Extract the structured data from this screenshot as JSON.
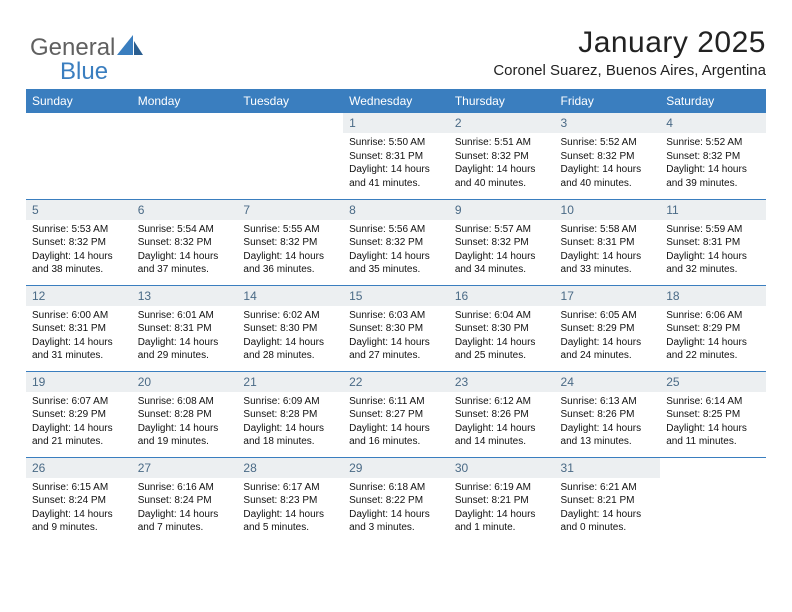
{
  "logo": {
    "text1": "General",
    "text2": "Blue"
  },
  "title": "January 2025",
  "location": "Coronel Suarez, Buenos Aires, Argentina",
  "colors": {
    "header_bg": "#3a7ebf",
    "header_fg": "#ffffff",
    "daynum_bg": "#eceff1",
    "daynum_fg": "#4a6a86",
    "rule": "#3a7ebf",
    "logo_gray": "#606060",
    "logo_blue": "#3a7ebf"
  },
  "weekdays": [
    "Sunday",
    "Monday",
    "Tuesday",
    "Wednesday",
    "Thursday",
    "Friday",
    "Saturday"
  ],
  "weeks": [
    [
      {
        "n": "",
        "sr": "",
        "ss": "",
        "dl": ""
      },
      {
        "n": "",
        "sr": "",
        "ss": "",
        "dl": ""
      },
      {
        "n": "",
        "sr": "",
        "ss": "",
        "dl": ""
      },
      {
        "n": "1",
        "sr": "Sunrise: 5:50 AM",
        "ss": "Sunset: 8:31 PM",
        "dl": "Daylight: 14 hours and 41 minutes."
      },
      {
        "n": "2",
        "sr": "Sunrise: 5:51 AM",
        "ss": "Sunset: 8:32 PM",
        "dl": "Daylight: 14 hours and 40 minutes."
      },
      {
        "n": "3",
        "sr": "Sunrise: 5:52 AM",
        "ss": "Sunset: 8:32 PM",
        "dl": "Daylight: 14 hours and 40 minutes."
      },
      {
        "n": "4",
        "sr": "Sunrise: 5:52 AM",
        "ss": "Sunset: 8:32 PM",
        "dl": "Daylight: 14 hours and 39 minutes."
      }
    ],
    [
      {
        "n": "5",
        "sr": "Sunrise: 5:53 AM",
        "ss": "Sunset: 8:32 PM",
        "dl": "Daylight: 14 hours and 38 minutes."
      },
      {
        "n": "6",
        "sr": "Sunrise: 5:54 AM",
        "ss": "Sunset: 8:32 PM",
        "dl": "Daylight: 14 hours and 37 minutes."
      },
      {
        "n": "7",
        "sr": "Sunrise: 5:55 AM",
        "ss": "Sunset: 8:32 PM",
        "dl": "Daylight: 14 hours and 36 minutes."
      },
      {
        "n": "8",
        "sr": "Sunrise: 5:56 AM",
        "ss": "Sunset: 8:32 PM",
        "dl": "Daylight: 14 hours and 35 minutes."
      },
      {
        "n": "9",
        "sr": "Sunrise: 5:57 AM",
        "ss": "Sunset: 8:32 PM",
        "dl": "Daylight: 14 hours and 34 minutes."
      },
      {
        "n": "10",
        "sr": "Sunrise: 5:58 AM",
        "ss": "Sunset: 8:31 PM",
        "dl": "Daylight: 14 hours and 33 minutes."
      },
      {
        "n": "11",
        "sr": "Sunrise: 5:59 AM",
        "ss": "Sunset: 8:31 PM",
        "dl": "Daylight: 14 hours and 32 minutes."
      }
    ],
    [
      {
        "n": "12",
        "sr": "Sunrise: 6:00 AM",
        "ss": "Sunset: 8:31 PM",
        "dl": "Daylight: 14 hours and 31 minutes."
      },
      {
        "n": "13",
        "sr": "Sunrise: 6:01 AM",
        "ss": "Sunset: 8:31 PM",
        "dl": "Daylight: 14 hours and 29 minutes."
      },
      {
        "n": "14",
        "sr": "Sunrise: 6:02 AM",
        "ss": "Sunset: 8:30 PM",
        "dl": "Daylight: 14 hours and 28 minutes."
      },
      {
        "n": "15",
        "sr": "Sunrise: 6:03 AM",
        "ss": "Sunset: 8:30 PM",
        "dl": "Daylight: 14 hours and 27 minutes."
      },
      {
        "n": "16",
        "sr": "Sunrise: 6:04 AM",
        "ss": "Sunset: 8:30 PM",
        "dl": "Daylight: 14 hours and 25 minutes."
      },
      {
        "n": "17",
        "sr": "Sunrise: 6:05 AM",
        "ss": "Sunset: 8:29 PM",
        "dl": "Daylight: 14 hours and 24 minutes."
      },
      {
        "n": "18",
        "sr": "Sunrise: 6:06 AM",
        "ss": "Sunset: 8:29 PM",
        "dl": "Daylight: 14 hours and 22 minutes."
      }
    ],
    [
      {
        "n": "19",
        "sr": "Sunrise: 6:07 AM",
        "ss": "Sunset: 8:29 PM",
        "dl": "Daylight: 14 hours and 21 minutes."
      },
      {
        "n": "20",
        "sr": "Sunrise: 6:08 AM",
        "ss": "Sunset: 8:28 PM",
        "dl": "Daylight: 14 hours and 19 minutes."
      },
      {
        "n": "21",
        "sr": "Sunrise: 6:09 AM",
        "ss": "Sunset: 8:28 PM",
        "dl": "Daylight: 14 hours and 18 minutes."
      },
      {
        "n": "22",
        "sr": "Sunrise: 6:11 AM",
        "ss": "Sunset: 8:27 PM",
        "dl": "Daylight: 14 hours and 16 minutes."
      },
      {
        "n": "23",
        "sr": "Sunrise: 6:12 AM",
        "ss": "Sunset: 8:26 PM",
        "dl": "Daylight: 14 hours and 14 minutes."
      },
      {
        "n": "24",
        "sr": "Sunrise: 6:13 AM",
        "ss": "Sunset: 8:26 PM",
        "dl": "Daylight: 14 hours and 13 minutes."
      },
      {
        "n": "25",
        "sr": "Sunrise: 6:14 AM",
        "ss": "Sunset: 8:25 PM",
        "dl": "Daylight: 14 hours and 11 minutes."
      }
    ],
    [
      {
        "n": "26",
        "sr": "Sunrise: 6:15 AM",
        "ss": "Sunset: 8:24 PM",
        "dl": "Daylight: 14 hours and 9 minutes."
      },
      {
        "n": "27",
        "sr": "Sunrise: 6:16 AM",
        "ss": "Sunset: 8:24 PM",
        "dl": "Daylight: 14 hours and 7 minutes."
      },
      {
        "n": "28",
        "sr": "Sunrise: 6:17 AM",
        "ss": "Sunset: 8:23 PM",
        "dl": "Daylight: 14 hours and 5 minutes."
      },
      {
        "n": "29",
        "sr": "Sunrise: 6:18 AM",
        "ss": "Sunset: 8:22 PM",
        "dl": "Daylight: 14 hours and 3 minutes."
      },
      {
        "n": "30",
        "sr": "Sunrise: 6:19 AM",
        "ss": "Sunset: 8:21 PM",
        "dl": "Daylight: 14 hours and 1 minute."
      },
      {
        "n": "31",
        "sr": "Sunrise: 6:21 AM",
        "ss": "Sunset: 8:21 PM",
        "dl": "Daylight: 14 hours and 0 minutes."
      },
      {
        "n": "",
        "sr": "",
        "ss": "",
        "dl": ""
      }
    ]
  ]
}
